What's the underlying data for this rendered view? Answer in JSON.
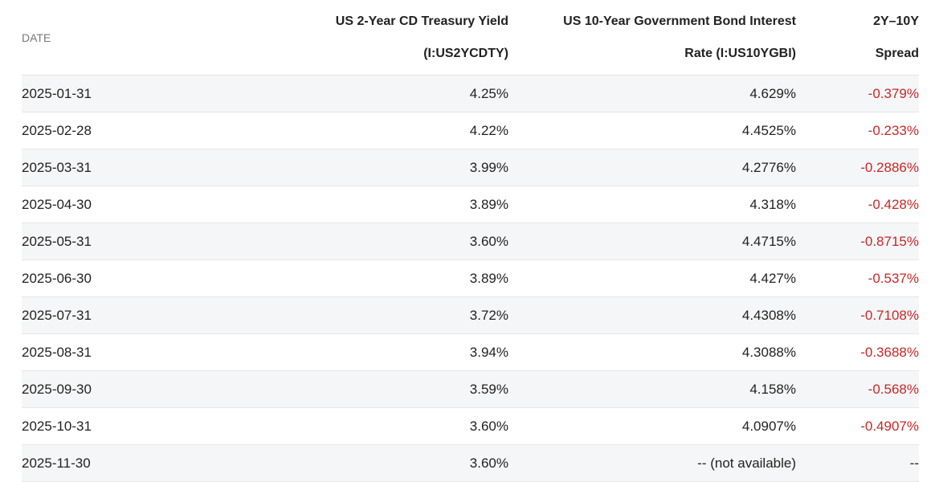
{
  "table": {
    "header": [
      [
        "DATE"
      ],
      [
        "US 2-Year CD Treasury Yield",
        "(I:US2YCDTY)"
      ],
      [
        "US 10-Year Government Bond Interest",
        "Rate (I:US10YGBI)"
      ],
      [
        "2Y–10Y",
        "Spread"
      ]
    ],
    "rows": [
      [
        "2025-01-31",
        "4.25%",
        "4.629%",
        "-0.379%"
      ],
      [
        "2025-02-28",
        "4.22%",
        "4.4525%",
        "-0.233%"
      ],
      [
        "2025-03-31",
        "3.99%",
        "4.2776%",
        "-0.2886%"
      ],
      [
        "2025-04-30",
        "3.89%",
        "4.318%",
        "-0.428%"
      ],
      [
        "2025-05-31",
        "3.60%",
        "4.4715%",
        "-0.8715%"
      ],
      [
        "2025-06-30",
        "3.89%",
        "4.427%",
        "-0.537%"
      ],
      [
        "2025-07-31",
        "3.72%",
        "4.4308%",
        "-0.7108%"
      ],
      [
        "2025-08-31",
        "3.94%",
        "4.3088%",
        "-0.3688%"
      ],
      [
        "2025-09-30",
        "3.59%",
        "4.158%",
        "-0.568%"
      ],
      [
        "2025-10-31",
        "3.60%",
        "4.0907%",
        "-0.4907%"
      ],
      [
        "2025-11-30",
        "3.60%",
        "-- (not available)",
        "--"
      ]
    ]
  }
}
